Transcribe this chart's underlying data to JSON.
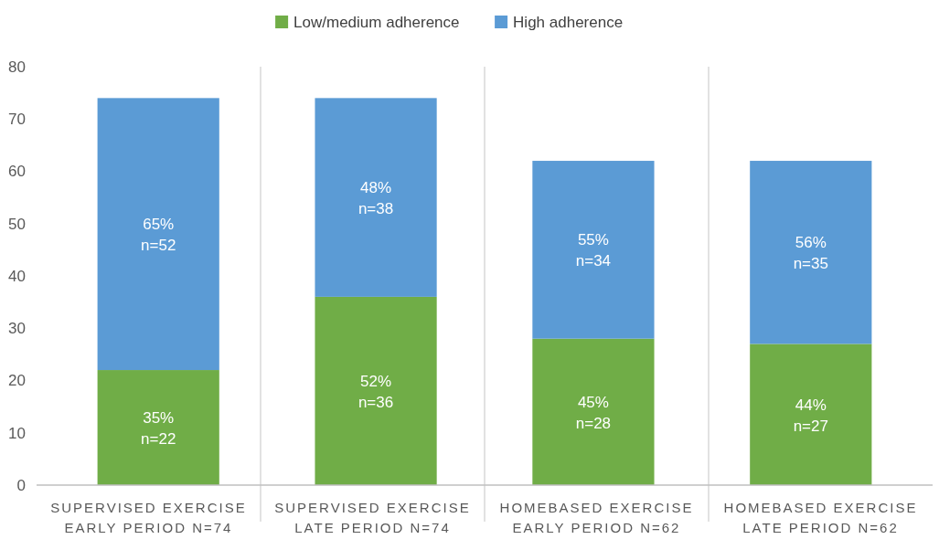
{
  "chart_data": {
    "type": "bar",
    "stacked": true,
    "categories": [
      "SUPERVISED EXERCISE\nEARLY PERIOD N=74",
      "SUPERVISED EXERCISE\nLATE PERIOD N=74",
      "HOMEBASED EXERCISE\nEARLY PERIOD N=62",
      "HOMEBASED EXERCISE\nLATE PERIOD N=62"
    ],
    "series": [
      {
        "name": "Low/medium adherence",
        "color": "#70ad47",
        "values": [
          22,
          36,
          28,
          27
        ],
        "value_labels": [
          "35%\nn=22",
          "52%\nn=36",
          "45%\nn=28",
          "44%\nn=27"
        ]
      },
      {
        "name": "High adherence",
        "color": "#5b9bd5",
        "values": [
          52,
          38,
          34,
          35
        ],
        "value_labels": [
          "65%\nn=52",
          "48%\nn=38",
          "55%\nn=34",
          "56%\nn=35"
        ]
      }
    ],
    "ylim": [
      0,
      80
    ],
    "yticks": [
      0,
      10,
      20,
      30,
      40,
      50,
      60,
      70,
      80
    ],
    "grid": "x",
    "legend": "top"
  }
}
